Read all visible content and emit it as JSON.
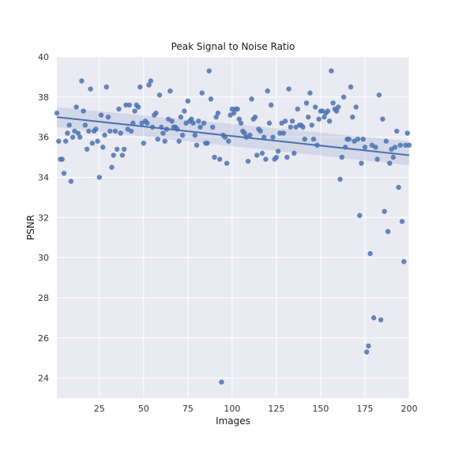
{
  "chart_data": {
    "type": "scatter",
    "title": "Peak Signal to Noise Ratio",
    "xlabel": "Images",
    "ylabel": "PSNR",
    "xlim": [
      1,
      200
    ],
    "ylim": [
      23,
      40
    ],
    "xticks": [
      25,
      50,
      75,
      100,
      125,
      150,
      175,
      200
    ],
    "yticks": [
      24,
      26,
      28,
      30,
      32,
      34,
      36,
      38,
      40
    ],
    "grid": true,
    "regression": {
      "x": [
        1,
        200
      ],
      "y": [
        37.0,
        35.1
      ],
      "ci_lower": [
        36.5,
        34.6
      ],
      "ci_upper": [
        37.5,
        35.8
      ]
    },
    "points": {
      "x": [
        1,
        2,
        3,
        4,
        5,
        6,
        7,
        8,
        9,
        10,
        11,
        12,
        13,
        14,
        15,
        16,
        17,
        18,
        19,
        20,
        21,
        22,
        23,
        24,
        25,
        26,
        27,
        28,
        29,
        30,
        31,
        32,
        33,
        34,
        35,
        36,
        37,
        38,
        39,
        40,
        41,
        42,
        43,
        44,
        45,
        46,
        47,
        48,
        49,
        50,
        51,
        52,
        53,
        54,
        55,
        56,
        57,
        58,
        59,
        60,
        61,
        62,
        63,
        64,
        65,
        66,
        67,
        68,
        69,
        70,
        71,
        72,
        73,
        74,
        75,
        76,
        77,
        78,
        79,
        80,
        81,
        82,
        83,
        84,
        85,
        86,
        87,
        88,
        89,
        90,
        91,
        92,
        93,
        94,
        95,
        96,
        97,
        98,
        99,
        100,
        101,
        102,
        103,
        104,
        105,
        106,
        107,
        108,
        109,
        110,
        111,
        112,
        113,
        114,
        115,
        116,
        117,
        118,
        119,
        120,
        121,
        122,
        123,
        124,
        125,
        126,
        127,
        128,
        129,
        130,
        131,
        132,
        133,
        134,
        135,
        136,
        137,
        138,
        139,
        140,
        141,
        142,
        143,
        144,
        145,
        146,
        147,
        148,
        149,
        150,
        151,
        152,
        153,
        154,
        155,
        156,
        157,
        158,
        159,
        160,
        161,
        162,
        163,
        164,
        165,
        166,
        167,
        168,
        169,
        170,
        171,
        172,
        173,
        174,
        175,
        176,
        177,
        178,
        179,
        180,
        181,
        182,
        183,
        184,
        185,
        186,
        187,
        188,
        189,
        190,
        191,
        192,
        193,
        194,
        195,
        196,
        197,
        198,
        199,
        200
      ],
      "y": [
        37.2,
        35.8,
        34.9,
        34.9,
        34.2,
        35.8,
        36.2,
        36.6,
        33.8,
        36.0,
        36.3,
        37.5,
        36.2,
        36.0,
        38.8,
        37.3,
        36.6,
        35.4,
        36.3,
        38.4,
        35.7,
        36.3,
        36.4,
        35.8,
        34.0,
        37.1,
        35.5,
        36.1,
        38.5,
        37.0,
        36.3,
        34.5,
        35.1,
        36.3,
        35.4,
        37.4,
        36.2,
        35.1,
        35.4,
        37.6,
        36.4,
        37.6,
        36.3,
        36.7,
        37.3,
        37.6,
        37.5,
        38.5,
        36.7,
        35.7,
        36.8,
        36.7,
        38.6,
        38.8,
        36.5,
        37.1,
        37.2,
        35.9,
        38.1,
        36.5,
        36.2,
        35.8,
        36.4,
        36.9,
        38.3,
        36.8,
        36.5,
        36.5,
        36.4,
        35.8,
        37.0,
        36.1,
        37.3,
        36.7,
        37.8,
        36.8,
        36.9,
        36.7,
        36.1,
        35.6,
        36.8,
        36.5,
        38.2,
        36.7,
        35.7,
        35.7,
        39.3,
        37.9,
        36.5,
        35.0,
        37.0,
        37.2,
        34.9,
        23.8,
        36.1,
        36.0,
        34.7,
        35.8,
        37.1,
        37.4,
        37.2,
        37.4,
        37.4,
        36.9,
        36.7,
        36.3,
        36.2,
        36.0,
        34.8,
        36.1,
        37.9,
        36.9,
        37.0,
        35.1,
        36.4,
        36.3,
        35.2,
        36.0,
        34.9,
        38.3,
        36.7,
        37.6,
        36.0,
        34.9,
        35.0,
        35.3,
        36.2,
        36.7,
        36.2,
        36.8,
        35.0,
        38.4,
        36.5,
        36.8,
        35.2,
        36.5,
        37.4,
        36.6,
        36.6,
        36.5,
        35.9,
        37.7,
        37.0,
        38.2,
        36.6,
        35.9,
        37.5,
        35.6,
        36.9,
        37.3,
        37.3,
        37.0,
        37.2,
        37.3,
        36.8,
        39.3,
        37.7,
        37.4,
        37.3,
        37.5,
        33.9,
        35.0,
        38.0,
        35.5,
        35.9,
        35.9,
        38.5,
        37.0,
        35.8,
        37.5,
        35.9,
        32.1,
        34.7,
        35.9,
        35.5,
        25.3,
        25.6,
        30.2,
        35.6,
        27.0,
        35.5,
        34.9,
        38.1,
        26.9,
        36.9,
        32.3,
        35.8,
        31.3,
        34.7,
        35.4,
        35.0,
        35.5,
        36.3,
        33.5,
        35.6,
        31.8,
        29.8,
        35.6,
        36.2,
        35.6
      ]
    }
  }
}
